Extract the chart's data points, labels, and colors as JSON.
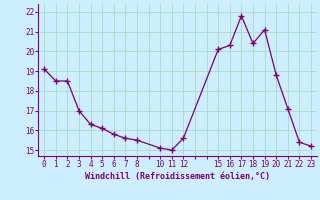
{
  "x": [
    0,
    1,
    2,
    3,
    4,
    5,
    6,
    7,
    8,
    10,
    11,
    12,
    15,
    16,
    17,
    18,
    19,
    20,
    21,
    22,
    23
  ],
  "y": [
    19.1,
    18.5,
    18.5,
    17.0,
    16.3,
    16.1,
    15.8,
    15.6,
    15.5,
    15.1,
    15.0,
    15.6,
    20.1,
    20.3,
    21.8,
    20.4,
    21.1,
    18.8,
    17.1,
    15.4,
    15.2
  ],
  "line_color": "#7b0070",
  "marker": "+",
  "marker_size": 5,
  "bg_color": "#cceeff",
  "grid_color": "#aaddcc",
  "xlabel": "Windchill (Refroidissement éolien,°C)",
  "xlabel_color": "#7b0070",
  "tick_color": "#7b0070",
  "xlim": [
    -0.5,
    23.5
  ],
  "ylim": [
    14.7,
    22.4
  ],
  "yticks": [
    15,
    16,
    17,
    18,
    19,
    20,
    21,
    22
  ],
  "xtick_labels": [
    "0",
    "1",
    "2",
    "3",
    "4",
    "5",
    "6",
    "7",
    "8",
    "",
    "10",
    "11",
    "12",
    "",
    "",
    "15",
    "16",
    "17",
    "18",
    "19",
    "20",
    "21",
    "22",
    "23"
  ],
  "xtick_positions": [
    0,
    1,
    2,
    3,
    4,
    5,
    6,
    7,
    8,
    9,
    10,
    11,
    12,
    13,
    14,
    15,
    16,
    17,
    18,
    19,
    20,
    21,
    22,
    23
  ]
}
